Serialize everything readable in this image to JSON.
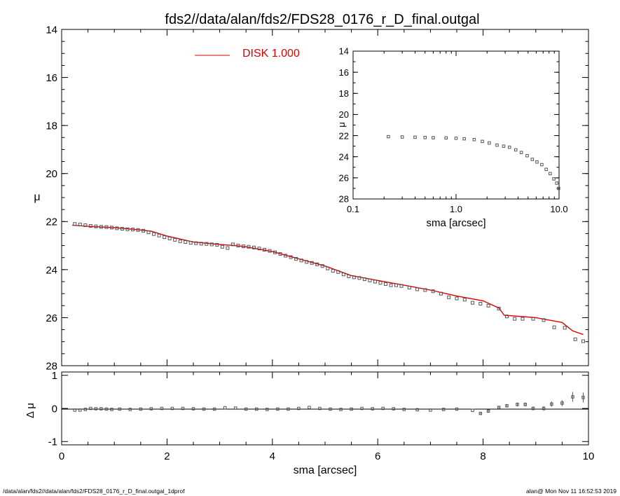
{
  "title": "fds2//data/alan/fds2/FDS28_0176_r_D_final.outgal",
  "footer_left": "/data/alan/fds2//data/alan/fds2/FDS28_0176_r_D_final.outgal_1dprof",
  "footer_right": "alan@  Mon Nov 11 16:52:53 2019",
  "colors": {
    "model": "#e00000",
    "data": "#555555",
    "axes": "#000000"
  },
  "chart_data": [
    {
      "type": "scatter",
      "panel": "main",
      "xlabel": "sma [arcsec]",
      "ylabel": "μ",
      "xlim": [
        0,
        10
      ],
      "ylim": [
        28,
        14
      ],
      "y_inverted": true,
      "xticks": [
        0,
        2,
        4,
        6,
        8,
        10
      ],
      "yticks": [
        14,
        16,
        18,
        20,
        22,
        24,
        26,
        28
      ],
      "legend": {
        "position": "top-center",
        "label": "DISK  1.000",
        "color": "#e00000"
      },
      "series": [
        {
          "name": "DISK  1.000",
          "kind": "line",
          "color": "#e00000",
          "x": [
            0.2,
            0.5,
            1.0,
            1.5,
            1.7,
            2.0,
            2.5,
            3.0,
            3.3,
            3.5,
            4.0,
            4.5,
            5.0,
            5.5,
            6.0,
            6.5,
            7.0,
            7.5,
            8.0,
            8.3,
            8.4,
            9.0,
            9.5,
            9.7,
            9.9
          ],
          "y": [
            22.15,
            22.2,
            22.25,
            22.35,
            22.4,
            22.6,
            22.85,
            22.95,
            23.0,
            23.05,
            23.25,
            23.55,
            23.85,
            24.25,
            24.45,
            24.65,
            24.85,
            25.1,
            25.3,
            25.6,
            25.9,
            26.0,
            26.2,
            26.55,
            26.7
          ]
        },
        {
          "name": "",
          "kind": "points",
          "color": "#555555",
          "x": [
            0.25,
            0.35,
            0.45,
            0.55,
            0.65,
            0.75,
            0.85,
            0.95,
            1.05,
            1.15,
            1.25,
            1.35,
            1.45,
            1.55,
            1.65,
            1.75,
            1.85,
            1.95,
            2.05,
            2.15,
            2.25,
            2.35,
            2.45,
            2.55,
            2.65,
            2.75,
            2.85,
            2.95,
            3.05,
            3.15,
            3.25,
            3.35,
            3.45,
            3.55,
            3.65,
            3.75,
            3.85,
            3.95,
            4.05,
            4.15,
            4.25,
            4.35,
            4.45,
            4.55,
            4.65,
            4.75,
            4.85,
            4.95,
            5.05,
            5.15,
            5.25,
            5.35,
            5.45,
            5.55,
            5.65,
            5.75,
            5.85,
            5.95,
            6.05,
            6.15,
            6.25,
            6.35,
            6.45,
            6.6,
            6.75,
            6.9,
            7.05,
            7.2,
            7.35,
            7.5,
            7.65,
            7.8,
            7.95,
            8.1,
            8.3,
            8.45,
            8.6,
            8.75,
            8.95,
            9.15,
            9.35,
            9.55,
            9.75,
            9.9
          ],
          "y": [
            22.1,
            22.12,
            22.15,
            22.18,
            22.2,
            22.22,
            22.23,
            22.25,
            22.28,
            22.3,
            22.32,
            22.33,
            22.35,
            22.38,
            22.45,
            22.52,
            22.58,
            22.65,
            22.7,
            22.76,
            22.82,
            22.85,
            22.88,
            22.9,
            22.92,
            22.93,
            22.95,
            22.97,
            23.05,
            23.1,
            22.95,
            23.0,
            23.03,
            23.05,
            23.08,
            23.12,
            23.17,
            23.22,
            23.28,
            23.35,
            23.42,
            23.48,
            23.55,
            23.62,
            23.68,
            23.72,
            23.78,
            23.85,
            23.95,
            24.05,
            24.1,
            24.2,
            24.28,
            24.32,
            24.35,
            24.4,
            24.45,
            24.5,
            24.55,
            24.6,
            24.65,
            24.65,
            24.68,
            24.75,
            24.82,
            24.85,
            24.9,
            25.0,
            25.15,
            25.2,
            25.25,
            25.38,
            25.42,
            25.5,
            25.62,
            25.95,
            26.05,
            26.05,
            26.05,
            26.1,
            26.4,
            26.42,
            26.9,
            26.98
          ]
        }
      ]
    },
    {
      "type": "scatter",
      "panel": "residual",
      "xlabel": "sma [arcsec]",
      "ylabel": "Δ μ",
      "xlim": [
        0,
        10
      ],
      "ylim": [
        -1.1,
        1.1
      ],
      "xticks": [
        0,
        2,
        4,
        6,
        8,
        10
      ],
      "yticks": [
        -1,
        0,
        1
      ],
      "series": [
        {
          "name": "",
          "kind": "points",
          "color": "#555555",
          "x": [
            0.25,
            0.35,
            0.45,
            0.55,
            0.65,
            0.75,
            0.85,
            0.95,
            1.1,
            1.3,
            1.5,
            1.7,
            1.9,
            2.1,
            2.3,
            2.5,
            2.7,
            2.9,
            3.1,
            3.3,
            3.5,
            3.7,
            3.9,
            4.1,
            4.3,
            4.5,
            4.7,
            4.9,
            5.1,
            5.3,
            5.5,
            5.7,
            5.9,
            6.1,
            6.3,
            6.5,
            6.75,
            7.0,
            7.25,
            7.5,
            7.8,
            7.95,
            8.1,
            8.3,
            8.45,
            8.65,
            8.8,
            8.95,
            9.15,
            9.3,
            9.5,
            9.7,
            9.9
          ],
          "y": [
            -0.05,
            -0.05,
            -0.03,
            0.0,
            -0.01,
            -0.01,
            -0.02,
            -0.03,
            -0.02,
            -0.03,
            -0.02,
            -0.01,
            0.0,
            0.0,
            0.0,
            -0.01,
            -0.02,
            -0.02,
            0.02,
            0.01,
            -0.02,
            -0.02,
            -0.03,
            -0.02,
            -0.02,
            0.0,
            0.03,
            0.0,
            -0.02,
            -0.03,
            -0.02,
            0.0,
            -0.01,
            0.0,
            -0.01,
            -0.03,
            -0.04,
            -0.05,
            -0.03,
            -0.02,
            -0.06,
            -0.15,
            -0.08,
            0.03,
            0.08,
            0.12,
            0.12,
            0.0,
            0.0,
            0.13,
            0.16,
            0.35,
            0.33
          ],
          "err": [
            0,
            0,
            0,
            0,
            0,
            0,
            0,
            0,
            0,
            0,
            0,
            0,
            0,
            0,
            0,
            0,
            0,
            0,
            0,
            0,
            0,
            0,
            0,
            0,
            0,
            0,
            0,
            0,
            0,
            0,
            0,
            0,
            0,
            0,
            0,
            0,
            0,
            0,
            0,
            0,
            0,
            0.04,
            0.04,
            0.04,
            0.05,
            0.06,
            0.06,
            0.06,
            0.07,
            0.08,
            0.09,
            0.15,
            0.15
          ]
        }
      ]
    },
    {
      "type": "scatter",
      "panel": "inset",
      "xlabel": "sma [arcsec]",
      "ylabel": "μ",
      "xscale": "log",
      "xlim": [
        0.1,
        10
      ],
      "ylim": [
        28,
        14
      ],
      "y_inverted": true,
      "xticks": [
        0.1,
        1.0,
        10.0
      ],
      "xtick_labels": [
        "0.1",
        "1.0",
        "10.0"
      ],
      "yticks": [
        14,
        16,
        18,
        20,
        22,
        24,
        26,
        28
      ],
      "series": [
        {
          "name": "",
          "kind": "points",
          "color": "#555555",
          "x": [
            0.22,
            0.3,
            0.4,
            0.5,
            0.6,
            0.8,
            1.0,
            1.2,
            1.5,
            1.8,
            2.1,
            2.5,
            2.9,
            3.3,
            3.8,
            4.3,
            4.9,
            5.5,
            6.1,
            6.8,
            7.5,
            8.2,
            8.9,
            9.5,
            9.9
          ],
          "y": [
            22.1,
            22.13,
            22.15,
            22.18,
            22.2,
            22.22,
            22.25,
            22.3,
            22.38,
            22.55,
            22.7,
            22.9,
            23.0,
            23.1,
            23.35,
            23.6,
            23.9,
            24.25,
            24.5,
            24.75,
            25.2,
            25.6,
            26.1,
            26.5,
            27.0
          ]
        }
      ]
    }
  ]
}
